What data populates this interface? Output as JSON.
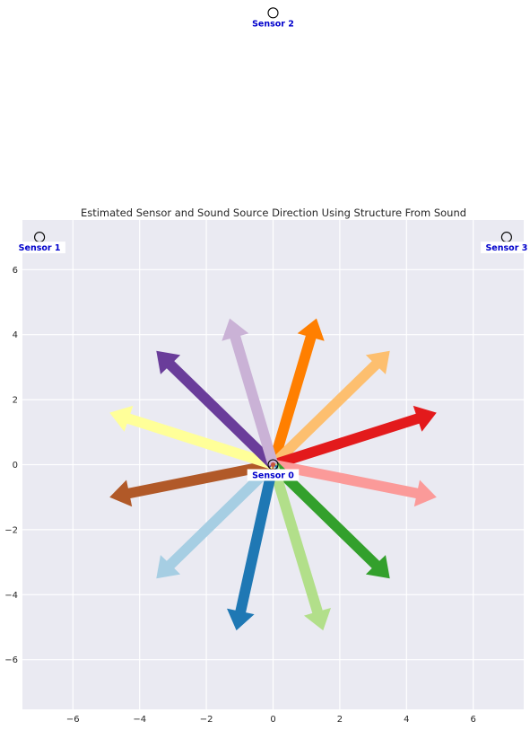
{
  "chart_data": {
    "type": "scatter",
    "title": "Estimated Sensor and Sound Source Direction Using Structure From Sound",
    "xlim": [
      -7.5,
      7.5
    ],
    "ylim": [
      -7.5,
      7.5
    ],
    "xticks": [
      -6,
      -4,
      -2,
      0,
      2,
      4,
      6
    ],
    "yticks": [
      -6,
      -4,
      -2,
      0,
      2,
      4,
      6
    ],
    "grid": true,
    "sensors": [
      {
        "name": "Sensor 0",
        "x": 0,
        "y": 0
      },
      {
        "name": "Sensor 1",
        "x": -7.0,
        "y": 7.0
      },
      {
        "name": "Sensor 2",
        "x": 0.0,
        "y": 13.9
      },
      {
        "name": "Sensor 3",
        "x": 7.0,
        "y": 7.0
      }
    ],
    "directions": [
      {
        "color": "#ff7f00",
        "dx": 1.3,
        "dy": 4.5
      },
      {
        "color": "#fdbf6f",
        "dx": 3.5,
        "dy": 3.5
      },
      {
        "color": "#e31a1c",
        "dx": 4.9,
        "dy": 1.6
      },
      {
        "color": "#fb9a99",
        "dx": 4.9,
        "dy": -1.0
      },
      {
        "color": "#33a02c",
        "dx": 3.5,
        "dy": -3.5
      },
      {
        "color": "#b2df8a",
        "dx": 1.5,
        "dy": -5.1
      },
      {
        "color": "#1f78b4",
        "dx": -1.1,
        "dy": -5.1
      },
      {
        "color": "#a6cee3",
        "dx": -3.5,
        "dy": -3.5
      },
      {
        "color": "#b15928",
        "dx": -4.9,
        "dy": -1.0
      },
      {
        "color": "#ffff99",
        "dx": -4.9,
        "dy": 1.6
      },
      {
        "color": "#6a3d9a",
        "dx": -3.5,
        "dy": 3.5
      },
      {
        "color": "#cab2d6",
        "dx": -1.3,
        "dy": 4.5
      }
    ]
  }
}
